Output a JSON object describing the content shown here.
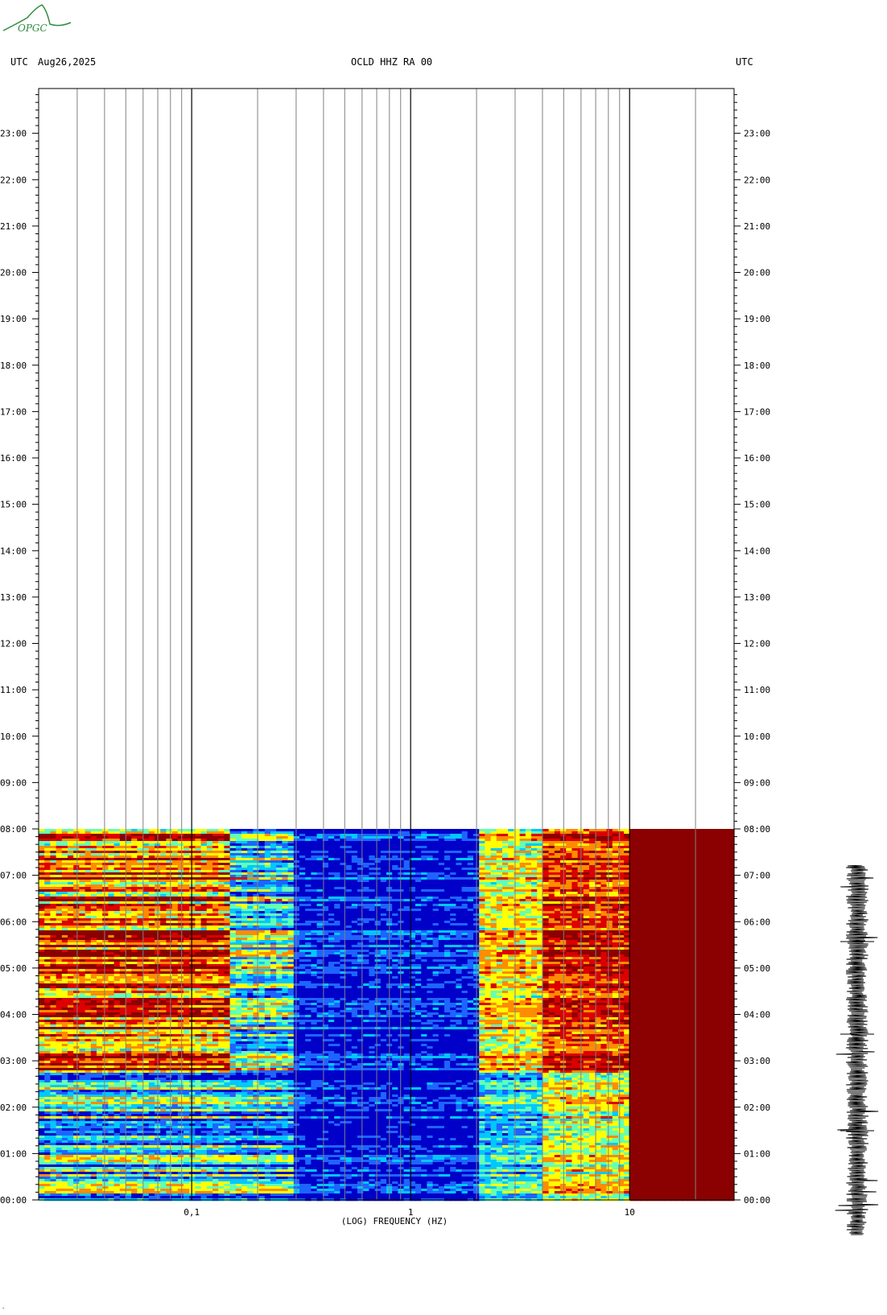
{
  "header": {
    "left_tz": "UTC",
    "date": "Aug26,2025",
    "station": "OCLD HHZ RA 00",
    "right_tz": "UTC"
  },
  "logo": {
    "text": "OPGC",
    "color": "#2e8b3e"
  },
  "chart_data": {
    "type": "heatmap",
    "title": "OCLD HHZ RA 00",
    "xlabel": "(LOG) FREQUENCY (HZ)",
    "ylabel": "",
    "x_scale": "log",
    "xlim": [
      0.02,
      30
    ],
    "x_major_ticks": [
      {
        "value": 0.1,
        "label": "0,1"
      },
      {
        "value": 1,
        "label": "1"
      },
      {
        "value": 10,
        "label": "10"
      }
    ],
    "x_minor_ticks": [
      0.03,
      0.04,
      0.05,
      0.06,
      0.07,
      0.08,
      0.09,
      0.2,
      0.3,
      0.4,
      0.5,
      0.6,
      0.7,
      0.8,
      0.9,
      2,
      3,
      4,
      5,
      6,
      7,
      8,
      9,
      20
    ],
    "y_ticks": [
      "23:00",
      "22:00",
      "21:00",
      "20:00",
      "19:00",
      "18:00",
      "17:00",
      "16:00",
      "15:00",
      "14:00",
      "13:00",
      "12:00",
      "11:00",
      "10:00",
      "09:00",
      "08:00",
      "07:00",
      "06:00",
      "05:00",
      "04:00",
      "03:00",
      "02:00",
      "01:00",
      "00:00"
    ],
    "y_range_hours": [
      0,
      24
    ],
    "data_end_hour": 8,
    "colormap": [
      "#0000c8",
      "#1e64ff",
      "#00c8ff",
      "#64ffb4",
      "#ffff00",
      "#ff8c00",
      "#dc0000",
      "#8b0000"
    ],
    "bands": [
      {
        "f_min": 0.02,
        "f_max": 0.15,
        "level_before_2h45": 0.35,
        "level_after_2h45": 0.75
      },
      {
        "f_min": 0.15,
        "f_max": 0.3,
        "level_before_2h45": 0.3,
        "level_after_2h45": 0.4
      },
      {
        "f_min": 0.3,
        "f_max": 2.0,
        "level_before_2h45": 0.08,
        "level_after_2h45": 0.1
      },
      {
        "f_min": 2.0,
        "f_max": 4.0,
        "level_before_2h45": 0.35,
        "level_after_2h45": 0.6
      },
      {
        "f_min": 4.0,
        "f_max": 10.0,
        "level_before_2h45": 0.55,
        "level_after_2h45": 0.8
      },
      {
        "f_min": 10.0,
        "f_max": 30.0,
        "level_before_2h45": 1.0,
        "level_after_2h45": 1.0
      }
    ]
  }
}
